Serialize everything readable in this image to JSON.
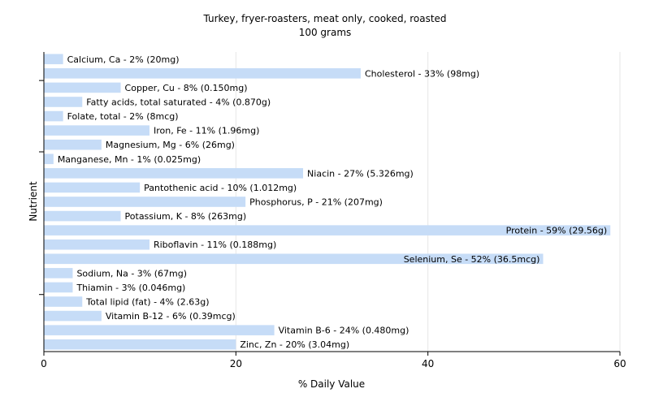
{
  "chart_data": {
    "type": "bar",
    "orientation": "horizontal",
    "title": "Turkey, fryer-roasters, meat only, cooked, roasted",
    "subtitle": "100 grams",
    "xlabel": "% Daily Value",
    "ylabel": "Nutrient",
    "xlim": [
      0,
      60
    ],
    "xticks": [
      0,
      20,
      40,
      60
    ],
    "grid": true,
    "bar_color": "#c6dcf7",
    "categories": [
      "Calcium, Ca",
      "Cholesterol",
      "Copper, Cu",
      "Fatty acids, total saturated",
      "Folate, total",
      "Iron, Fe",
      "Magnesium, Mg",
      "Manganese, Mn",
      "Niacin",
      "Pantothenic acid",
      "Phosphorus, P",
      "Potassium, K",
      "Protein",
      "Riboflavin",
      "Selenium, Se",
      "Sodium, Na",
      "Thiamin",
      "Total lipid (fat)",
      "Vitamin B-12",
      "Vitamin B-6",
      "Zinc, Zn"
    ],
    "values": [
      2,
      33,
      8,
      4,
      2,
      11,
      6,
      1,
      27,
      10,
      21,
      8,
      59,
      11,
      52,
      3,
      3,
      4,
      6,
      24,
      20
    ],
    "labels": [
      "Calcium, Ca - 2% (20mg)",
      "Cholesterol - 33% (98mg)",
      "Copper, Cu - 8% (0.150mg)",
      "Fatty acids, total saturated - 4% (0.870g)",
      "Folate, total - 2% (8mcg)",
      "Iron, Fe - 11% (1.96mg)",
      "Magnesium, Mg - 6% (26mg)",
      "Manganese, Mn - 1% (0.025mg)",
      "Niacin - 27% (5.326mg)",
      "Pantothenic acid - 10% (1.012mg)",
      "Phosphorus, P - 21% (207mg)",
      "Potassium, K - 8% (263mg)",
      "Protein - 59% (29.56g)",
      "Riboflavin - 11% (0.188mg)",
      "Selenium, Se - 52% (36.5mcg)",
      "Sodium, Na - 3% (67mg)",
      "Thiamin - 3% (0.046mg)",
      "Total lipid (fat) - 4% (2.63g)",
      "Vitamin B-12 - 6% (0.39mcg)",
      "Vitamin B-6 - 24% (0.480mg)",
      "Zinc, Zn - 20% (3.04mg)"
    ]
  }
}
